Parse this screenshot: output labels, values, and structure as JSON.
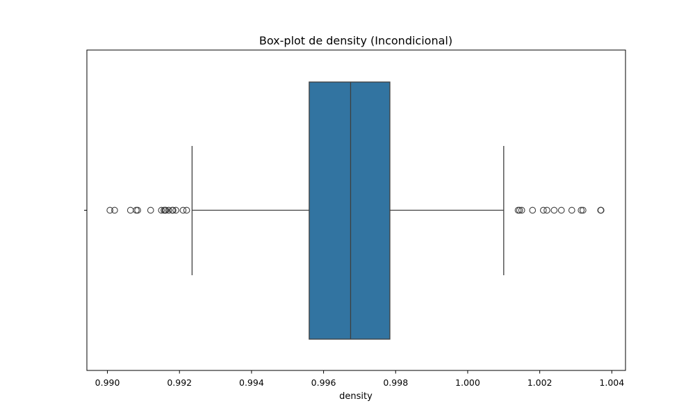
{
  "chart_data": {
    "type": "box",
    "title": "Box-plot de density (Incondicional)",
    "xlabel": "density",
    "ylabel": "",
    "orientation": "horizontal",
    "xlim": [
      0.98943,
      1.00438
    ],
    "x_ticks": [
      0.99,
      0.992,
      0.994,
      0.996,
      0.998,
      1.0,
      1.002,
      1.004
    ],
    "x_tick_labels": [
      "0.990",
      "0.992",
      "0.994",
      "0.996",
      "0.998",
      "1.000",
      "1.002",
      "1.004"
    ],
    "grid": false,
    "box": {
      "whisker_low": 0.99235,
      "q1": 0.9956,
      "median": 0.99675,
      "q3": 0.99784,
      "whisker_high": 1.001
    },
    "outliers": [
      0.99007,
      0.9902,
      0.99064,
      0.9908,
      0.99084,
      0.9912,
      0.9915,
      0.99157,
      0.9916,
      0.99162,
      0.9917,
      0.9918,
      0.99182,
      0.9919,
      0.9921,
      0.9922,
      1.0014,
      1.00144,
      1.0015,
      1.0018,
      1.0021,
      1.0022,
      1.0024,
      1.0026,
      1.00289,
      1.00315,
      1.0032,
      1.00369,
      1.0037
    ],
    "colors": {
      "box_fill": "#3274a1",
      "line": "#3f3f3f",
      "axes": "#000000"
    }
  }
}
